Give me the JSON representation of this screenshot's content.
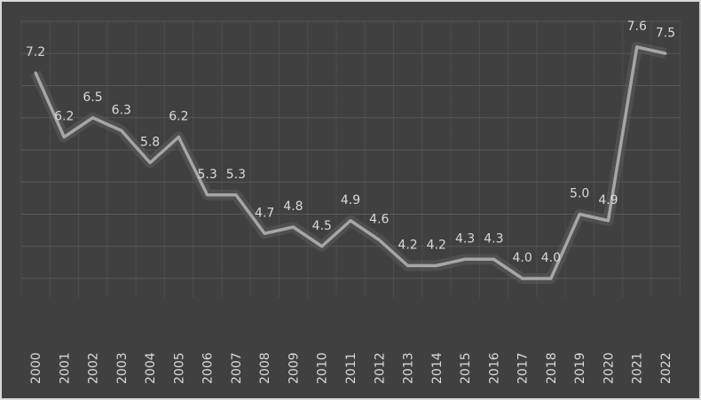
{
  "chart_data": {
    "type": "line",
    "title": "",
    "xlabel": "",
    "ylabel": "",
    "categories": [
      "2000",
      "2001",
      "2002",
      "2003",
      "2004",
      "2005",
      "2006",
      "2007",
      "2008",
      "2009",
      "2010",
      "2011",
      "2012",
      "2013",
      "2014",
      "2015",
      "2016",
      "2017",
      "2018",
      "2019",
      "2020",
      "2021",
      "2022"
    ],
    "values": [
      7.2,
      6.2,
      6.5,
      6.3,
      5.8,
      6.2,
      5.3,
      5.3,
      4.7,
      4.8,
      4.5,
      4.9,
      4.6,
      4.2,
      4.2,
      4.3,
      4.3,
      4.0,
      4.0,
      5.0,
      4.9,
      7.6,
      7.5
    ],
    "data_labels": [
      "7.2",
      "6.2",
      "6.5",
      "6.3",
      "5.8",
      "6.2",
      "5.3",
      "5.3",
      "4.7",
      "4.8",
      "4.5",
      "4.9",
      "4.6",
      "4.2",
      "4.2",
      "4.3",
      "4.3",
      "4.0",
      "4.0",
      "5.0",
      "4.9",
      "7.6",
      "7.5"
    ],
    "ylim": [
      4,
      8
    ],
    "grid": true,
    "legend": "none",
    "colors": {
      "background": "#404040",
      "line": "#a6a6a6",
      "grid": "#595959",
      "text": "#d9d9d9",
      "border": "#d9d9d9"
    }
  }
}
